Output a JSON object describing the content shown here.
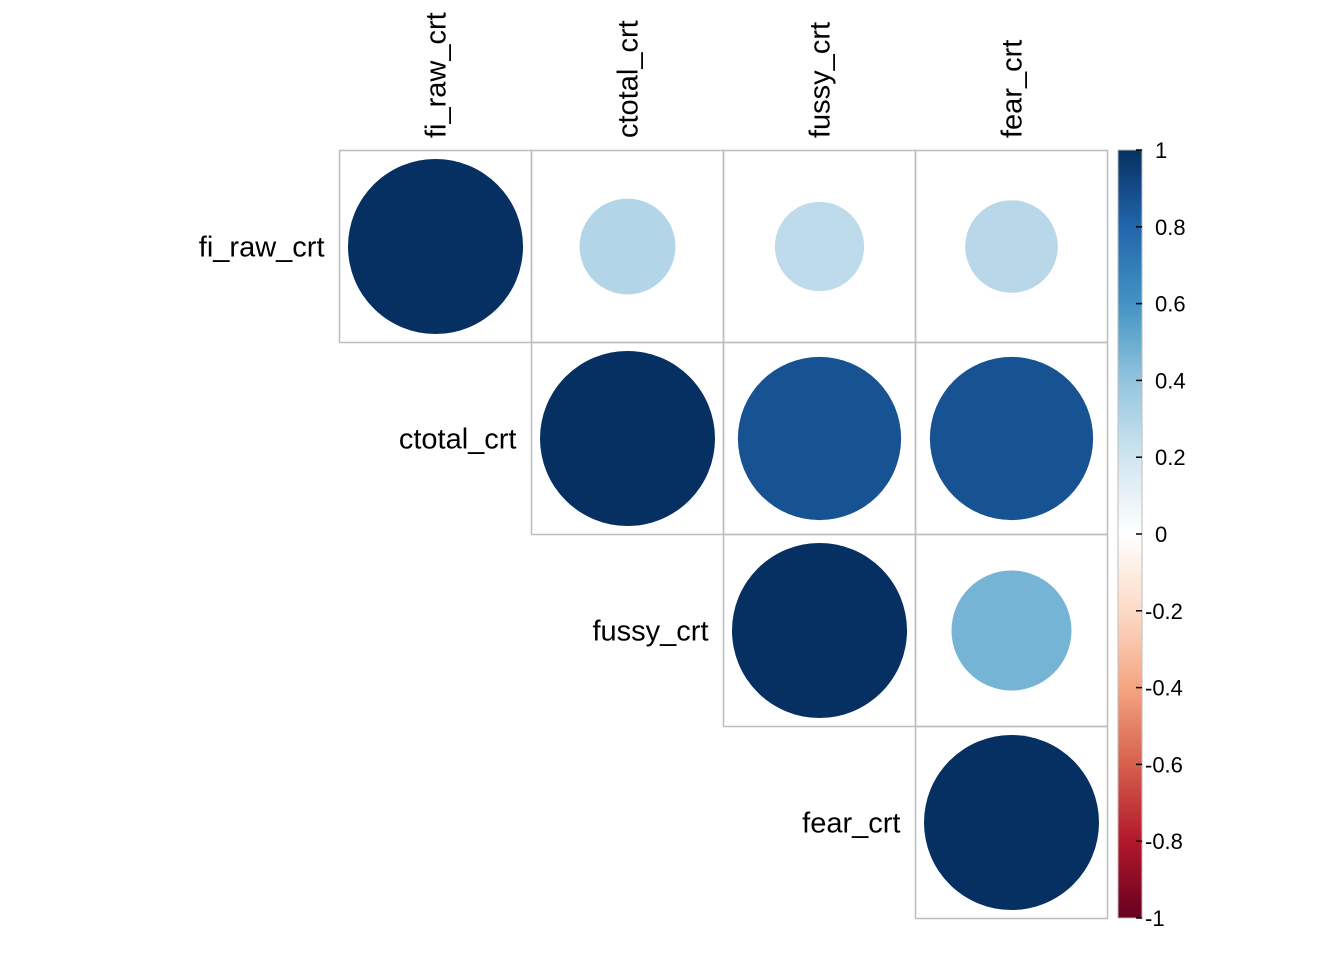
{
  "chart_data": {
    "type": "heatmap",
    "subtype": "correlation-circle-upper-triangle",
    "variables": [
      "fi_raw_crt",
      "ctotal_crt",
      "fussy_crt",
      "fear_crt"
    ],
    "matrix": [
      [
        1.0,
        0.3,
        0.26,
        0.28
      ],
      [
        null,
        1.0,
        0.87,
        0.87
      ],
      [
        null,
        null,
        1.0,
        0.47
      ],
      [
        null,
        null,
        null,
        1.0
      ]
    ],
    "colorbar": {
      "ticks": [
        "1",
        "0.8",
        "0.6",
        "0.4",
        "0.2",
        "0",
        "-0.2",
        "-0.4",
        "-0.6",
        "-0.8",
        "-1"
      ],
      "range": [
        -1,
        1
      ]
    },
    "grid": true,
    "legend_position": "right"
  },
  "colors": {
    "scale": [
      "#67001F",
      "#B2182B",
      "#D6604D",
      "#F4A582",
      "#FDDBC7",
      "#FFFFFF",
      "#D1E5F0",
      "#92C5DE",
      "#4393C3",
      "#2166AC",
      "#053061"
    ],
    "grid": "#bebebe",
    "text": "#000000"
  }
}
